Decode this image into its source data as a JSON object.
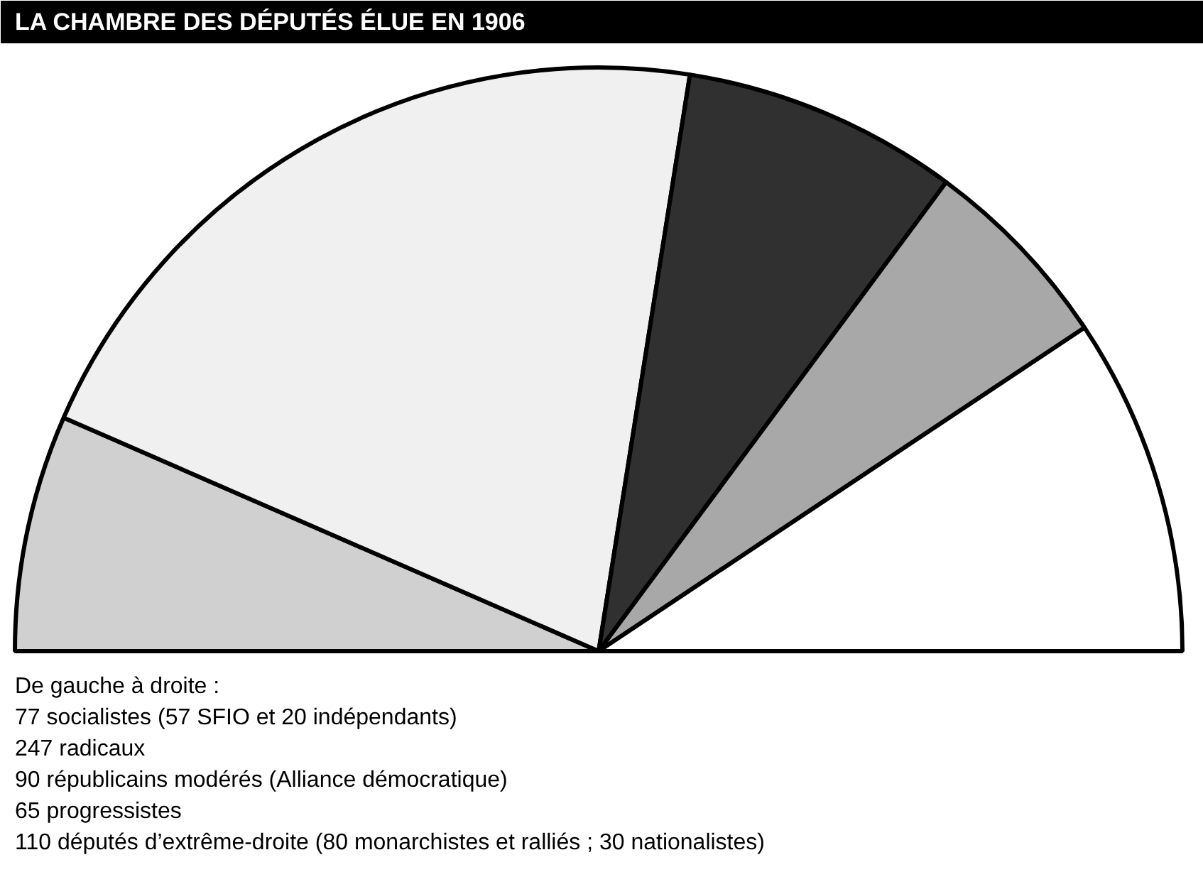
{
  "chart_data": {
    "type": "pie",
    "title": "LA CHAMBRE DES DÉPUTÉS ÉLUE EN 1906",
    "annotations": [
      "De gauche à droite :",
      "77 socialistes (57 SFIO et 20 indépendants)",
      "247 radicaux",
      "90 républicains modérés (Alliance démocratique)",
      "65 progressistes",
      "110 députés d’extrême-droite (80 monarchistes et ralliés ; 30 nationalistes)"
    ],
    "categories": [
      null,
      null,
      null,
      null,
      null
    ],
    "values": [
      13.1,
      41.9,
      15.3,
      11.0,
      18.7
    ],
    "colors": [
      "#d0d0d0",
      "#f0f0f0",
      "#303030",
      "#a8a8a8",
      "#ffffff"
    ]
  }
}
